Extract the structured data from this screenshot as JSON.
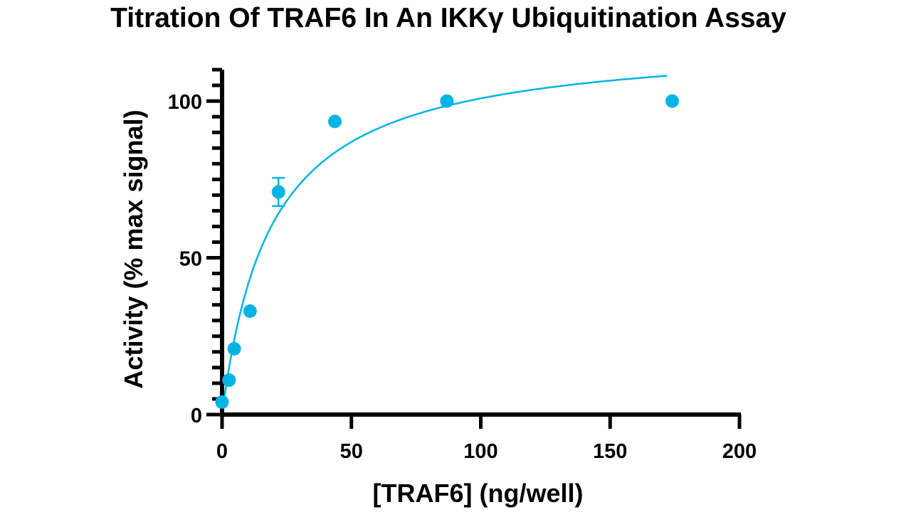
{
  "chart_data": {
    "type": "scatter",
    "title": "Titration Of TRAF6 In An IKKγ Ubiquitination Assay",
    "xlabel": "[TRAF6] (ng/well)",
    "ylabel": "Activity (% max signal)",
    "xlim": [
      0,
      200
    ],
    "ylim": [
      0,
      110
    ],
    "xticks": [
      0,
      50,
      100,
      150,
      200
    ],
    "yticks": [
      0,
      50,
      100
    ],
    "y_minor_step": 5,
    "grid": false,
    "legend": "none",
    "series": [
      {
        "color": "#00b4e6",
        "marker": "circle",
        "points": [
          {
            "x": 0,
            "y": 4
          },
          {
            "x": 2.7,
            "y": 11
          },
          {
            "x": 4.7,
            "y": 21
          },
          {
            "x": 10.8,
            "y": 33
          },
          {
            "x": 21.8,
            "y": 71,
            "err": 4.5
          },
          {
            "x": 43.6,
            "y": 93.5
          },
          {
            "x": 86.9,
            "y": 100
          },
          {
            "x": 174,
            "y": 100
          }
        ],
        "fit": {
          "model": "hyperbolic",
          "ymax": 120,
          "k": 19,
          "x_range": [
            0,
            172
          ]
        }
      }
    ]
  }
}
